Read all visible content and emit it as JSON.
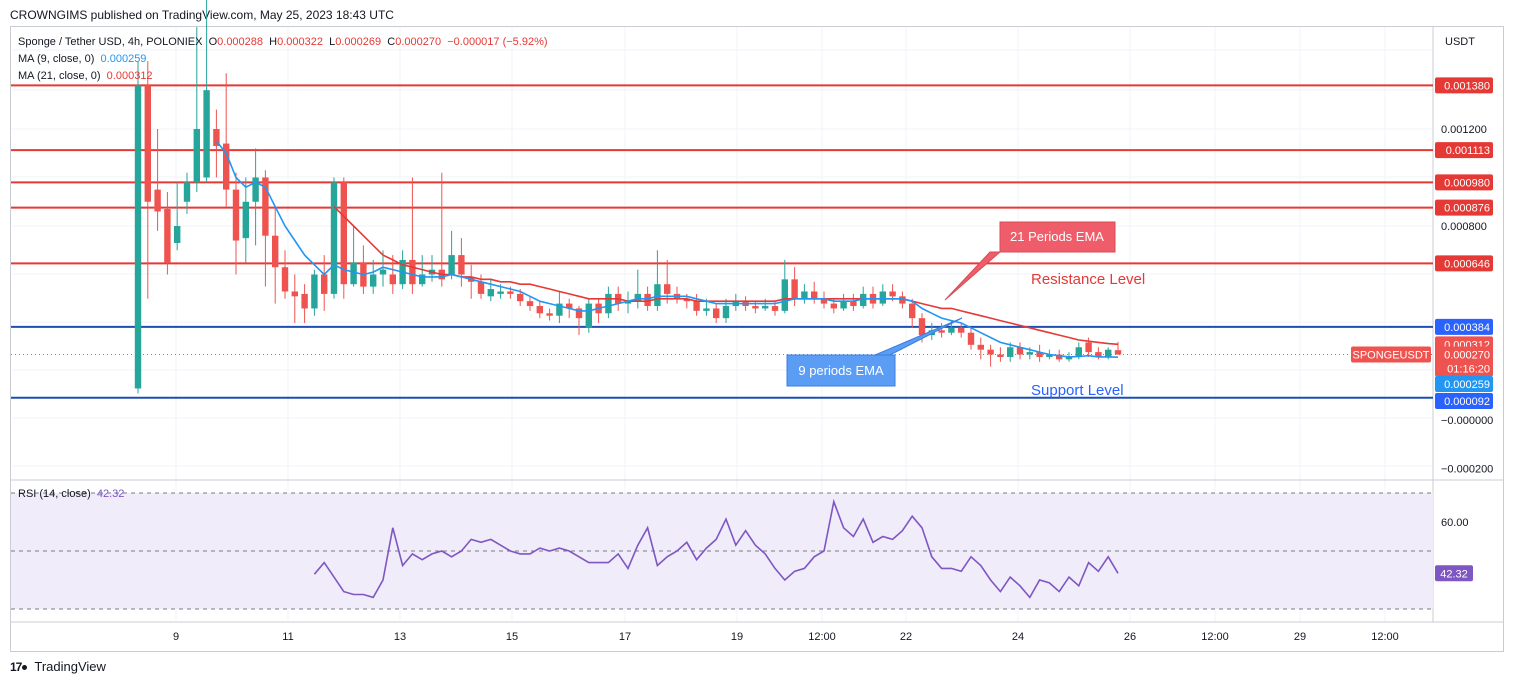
{
  "header": {
    "publisher_line": "CROWNGIMS published on TradingView.com, May 25, 2023 18:43 UTC"
  },
  "legend": {
    "symbol": "Sponge / Tether USD, 4h, POLONIEX",
    "o_label": "O",
    "o_value": "0.000288",
    "h_label": "H",
    "h_value": "0.000322",
    "l_label": "L",
    "l_value": "0.000269",
    "c_label": "C",
    "c_value": "0.000270",
    "change": "−0.000017 (−5.92%)",
    "ma9_label": "MA (9, close, 0)",
    "ma9_value": "0.000259",
    "ma21_label": "MA (21, close, 0)",
    "ma21_value": "0.000312"
  },
  "axis": {
    "currency": "USDT",
    "price_ticks": [
      "0.001200",
      "0.000800",
      "−0.000000",
      "−0.000200"
    ],
    "rsi_ticks": [
      "60.00"
    ],
    "x_ticks": [
      "9",
      "11",
      "13",
      "15",
      "17",
      "19",
      "12:00",
      "22",
      "24",
      "26",
      "12:00",
      "29",
      "12:00"
    ]
  },
  "levels": {
    "red": [
      {
        "value": 0.00138,
        "label": "0.001380"
      },
      {
        "value": 0.001113,
        "label": "0.001113"
      },
      {
        "value": 0.00098,
        "label": "0.000980"
      },
      {
        "value": 0.000876,
        "label": "0.000876"
      },
      {
        "value": 0.000646,
        "label": "0.000646"
      }
    ],
    "blue": [
      {
        "value": 0.000384,
        "label": "0.000384"
      },
      {
        "value": 9.2e-05,
        "label": "0.000092"
      }
    ]
  },
  "price_tags": {
    "ma21": "0.000312",
    "current": "0.000270",
    "countdown": "01:16:20",
    "ma9": "0.000259",
    "symbol_tag": "SPONGEUSDT"
  },
  "annotations": {
    "ema21": "21 Periods EMA",
    "ema9": "9 periods EMA",
    "resistance": "Resistance Level",
    "support": "Support Level"
  },
  "rsi": {
    "label": "RSI (14, close)",
    "value": "42.32"
  },
  "colors": {
    "up": "#26a69a",
    "down": "#ef5350",
    "ma9": "#2196f3",
    "ma21": "#e53935",
    "resistance_line": "#e53935",
    "support_line": "#1e4fb0",
    "rsi_line": "#7e57c2",
    "rsi_band": "#f0ecfa"
  },
  "footer": {
    "brand": "TradingView"
  },
  "chart_data": {
    "type": "candlestick",
    "title": "Sponge / Tether USD, 4h, POLONIEX",
    "ylabel": "USDT",
    "ylim": [
      -0.00025,
      0.00145
    ],
    "candles": [
      [
        0.00013,
        0.00138,
        0.00148,
        0.00011
      ],
      [
        0.00138,
        0.0009,
        0.00148,
        0.0005
      ],
      [
        0.00095,
        0.00086,
        0.0012,
        0.00078
      ],
      [
        0.00087,
        0.00065,
        0.00094,
        0.0006
      ],
      [
        0.00073,
        0.0008,
        0.00098,
        0.0007
      ],
      [
        0.0009,
        0.00098,
        0.00102,
        0.00085
      ],
      [
        0.00098,
        0.0012,
        0.00162,
        0.00094
      ],
      [
        0.001,
        0.00136,
        0.00178,
        0.00098
      ],
      [
        0.0012,
        0.00113,
        0.00128,
        0.001
      ],
      [
        0.00114,
        0.00095,
        0.00143,
        0.00088
      ],
      [
        0.00095,
        0.00074,
        0.00102,
        0.0006
      ],
      [
        0.00075,
        0.0009,
        0.001,
        0.00065
      ],
      [
        0.0009,
        0.001,
        0.00112,
        0.00072
      ],
      [
        0.001,
        0.00076,
        0.00103,
        0.00055
      ],
      [
        0.00076,
        0.00063,
        0.00088,
        0.00048
      ],
      [
        0.00063,
        0.00053,
        0.0007,
        0.0005
      ],
      [
        0.00053,
        0.00051,
        0.0006,
        0.0004
      ],
      [
        0.00052,
        0.00046,
        0.00056,
        0.0004
      ],
      [
        0.00046,
        0.0006,
        0.00062,
        0.00043
      ],
      [
        0.0006,
        0.00052,
        0.00068,
        0.00045
      ],
      [
        0.00052,
        0.00098,
        0.001,
        0.0005
      ],
      [
        0.00098,
        0.00056,
        0.001,
        0.0005
      ],
      [
        0.00056,
        0.00065,
        0.0008,
        0.00055
      ],
      [
        0.00065,
        0.00055,
        0.00072,
        0.00052
      ],
      [
        0.00055,
        0.0006,
        0.00066,
        0.00052
      ],
      [
        0.0006,
        0.00062,
        0.0007,
        0.00055
      ],
      [
        0.0006,
        0.00056,
        0.00068,
        0.00052
      ],
      [
        0.00056,
        0.00066,
        0.0007,
        0.00054
      ],
      [
        0.00066,
        0.00056,
        0.001,
        0.00052
      ],
      [
        0.00056,
        0.0006,
        0.00068,
        0.00055
      ],
      [
        0.0006,
        0.00062,
        0.00068,
        0.00057
      ],
      [
        0.00062,
        0.00058,
        0.00102,
        0.00055
      ],
      [
        0.0006,
        0.00068,
        0.00078,
        0.00058
      ],
      [
        0.00068,
        0.0006,
        0.00075,
        0.00055
      ],
      [
        0.00059,
        0.00057,
        0.00064,
        0.0005
      ],
      [
        0.00057,
        0.00052,
        0.0006,
        0.0005
      ],
      [
        0.00051,
        0.00054,
        0.00058,
        0.00049
      ],
      [
        0.00052,
        0.00053,
        0.00056,
        0.0005
      ],
      [
        0.00053,
        0.00052,
        0.00055,
        0.0005
      ],
      [
        0.00052,
        0.00049,
        0.00054,
        0.00047
      ],
      [
        0.00049,
        0.00047,
        0.00051,
        0.00045
      ],
      [
        0.00047,
        0.00044,
        0.00049,
        0.00042
      ],
      [
        0.00044,
        0.00043,
        0.00046,
        0.00041
      ],
      [
        0.00043,
        0.00048,
        0.00053,
        0.0004
      ],
      [
        0.00048,
        0.00046,
        0.0005,
        0.00042
      ],
      [
        0.00046,
        0.00042,
        0.00047,
        0.00035
      ],
      [
        0.00038,
        0.00048,
        0.0005,
        0.00036
      ],
      [
        0.00048,
        0.00044,
        0.0005,
        0.0004
      ],
      [
        0.00044,
        0.00052,
        0.00055,
        0.00042
      ],
      [
        0.00052,
        0.00048,
        0.00055,
        0.00045
      ],
      [
        0.00048,
        0.00049,
        0.00053,
        0.00044
      ],
      [
        0.00049,
        0.00052,
        0.00062,
        0.00046
      ],
      [
        0.00052,
        0.00047,
        0.00055,
        0.00045
      ],
      [
        0.00047,
        0.00056,
        0.0007,
        0.00045
      ],
      [
        0.00056,
        0.00052,
        0.00066,
        0.00048
      ],
      [
        0.00052,
        0.0005,
        0.00055,
        0.00048
      ],
      [
        0.0005,
        0.00049,
        0.00052,
        0.00046
      ],
      [
        0.00049,
        0.00045,
        0.00052,
        0.00043
      ],
      [
        0.00045,
        0.00046,
        0.0005,
        0.00043
      ],
      [
        0.00046,
        0.00042,
        0.00048,
        0.0004
      ],
      [
        0.00042,
        0.00047,
        0.0005,
        0.0004
      ],
      [
        0.00047,
        0.00049,
        0.00052,
        0.00045
      ],
      [
        0.00049,
        0.00047,
        0.00051,
        0.00045
      ],
      [
        0.00047,
        0.00046,
        0.00049,
        0.00044
      ],
      [
        0.00046,
        0.00047,
        0.0005,
        0.00045
      ],
      [
        0.00047,
        0.00045,
        0.00049,
        0.00043
      ],
      [
        0.00045,
        0.00058,
        0.00066,
        0.00044
      ],
      [
        0.00058,
        0.0005,
        0.00063,
        0.00047
      ],
      [
        0.0005,
        0.00053,
        0.00056,
        0.00048
      ],
      [
        0.00053,
        0.0005,
        0.00057,
        0.00048
      ],
      [
        0.0005,
        0.00048,
        0.00053,
        0.00046
      ],
      [
        0.00048,
        0.00046,
        0.0005,
        0.00044
      ],
      [
        0.00046,
        0.00049,
        0.00052,
        0.00045
      ],
      [
        0.00049,
        0.00047,
        0.00052,
        0.00045
      ],
      [
        0.00047,
        0.00052,
        0.00055,
        0.00046
      ],
      [
        0.00052,
        0.00048,
        0.00055,
        0.00046
      ],
      [
        0.00048,
        0.00053,
        0.00056,
        0.00047
      ],
      [
        0.00053,
        0.00051,
        0.00056,
        0.00049
      ],
      [
        0.00051,
        0.00048,
        0.00053,
        0.00046
      ],
      [
        0.00048,
        0.00042,
        0.0005,
        0.00038
      ],
      [
        0.00042,
        0.00035,
        0.00044,
        0.00032
      ],
      [
        0.00035,
        0.00037,
        0.0004,
        0.00033
      ],
      [
        0.00037,
        0.00036,
        0.0004,
        0.00034
      ],
      [
        0.00036,
        0.00038,
        0.00041,
        0.00035
      ],
      [
        0.00038,
        0.00036,
        0.0004,
        0.00034
      ],
      [
        0.00036,
        0.00031,
        0.00038,
        0.00029
      ],
      [
        0.00031,
        0.00029,
        0.00034,
        0.00025
      ],
      [
        0.00029,
        0.00027,
        0.00031,
        0.00022
      ],
      [
        0.00027,
        0.00026,
        0.0003,
        0.00024
      ],
      [
        0.00026,
        0.0003,
        0.00032,
        0.00024
      ],
      [
        0.0003,
        0.00027,
        0.00032,
        0.00025
      ],
      [
        0.00027,
        0.00028,
        0.0003,
        0.00025
      ],
      [
        0.00028,
        0.00026,
        0.00031,
        0.00024
      ],
      [
        0.00026,
        0.00027,
        0.00029,
        0.00025
      ],
      [
        0.00027,
        0.00025,
        0.00029,
        0.00024
      ],
      [
        0.00025,
        0.00026,
        0.00028,
        0.00024
      ],
      [
        0.00026,
        0.0003,
        0.00032,
        0.00025
      ],
      [
        0.00032,
        0.00028,
        0.00034,
        0.00026
      ],
      [
        0.00028,
        0.00026,
        0.0003,
        0.00025
      ],
      [
        0.00026,
        0.00029,
        0.0003,
        0.00025
      ],
      [
        0.000288,
        0.00027,
        0.000322,
        0.000269
      ]
    ],
    "ma9": [
      null,
      null,
      null,
      null,
      null,
      null,
      null,
      null,
      0.00115,
      0.0011,
      0.001,
      0.00096,
      0.00098,
      0.00096,
      0.00088,
      0.0008,
      0.00074,
      0.00068,
      0.00064,
      0.0006,
      0.00064,
      0.00062,
      0.00061,
      0.0006,
      0.00061,
      0.00063,
      0.00062,
      0.00061,
      0.0006,
      0.00059,
      0.00059,
      0.00059,
      0.0006,
      0.00059,
      0.00058,
      0.00057,
      0.00056,
      0.00055,
      0.00054,
      0.00053,
      0.00051,
      0.00049,
      0.00048,
      0.00047,
      0.00046,
      0.00045,
      0.00045,
      0.00046,
      0.00047,
      0.00048,
      0.00049,
      0.0005,
      0.0005,
      0.00051,
      0.00051,
      0.00051,
      0.00051,
      0.0005,
      0.00049,
      0.00048,
      0.00048,
      0.00048,
      0.00048,
      0.00048,
      0.00048,
      0.00048,
      0.00049,
      0.0005,
      0.0005,
      0.0005,
      0.0005,
      0.00049,
      0.00049,
      0.00049,
      0.0005,
      0.0005,
      0.0005,
      0.0005,
      0.0005,
      0.00049,
      0.00046,
      0.00044,
      0.00042,
      0.00041,
      0.0004,
      0.00038,
      0.00036,
      0.00034,
      0.00032,
      0.00031,
      0.0003,
      0.00029,
      0.00028,
      0.00027,
      0.000265,
      0.00026,
      0.000262,
      0.000265,
      0.00026,
      0.00026,
      0.000259
    ],
    "ma21": [
      null,
      null,
      null,
      null,
      null,
      null,
      null,
      null,
      null,
      null,
      null,
      null,
      null,
      null,
      null,
      null,
      null,
      null,
      null,
      null,
      0.00088,
      0.00084,
      0.0008,
      0.00076,
      0.00072,
      0.00068,
      0.00066,
      0.00064,
      0.00063,
      0.00062,
      0.00061,
      0.0006,
      0.0006,
      0.00059,
      0.00059,
      0.00058,
      0.00058,
      0.00057,
      0.00057,
      0.00056,
      0.00056,
      0.00055,
      0.00054,
      0.00053,
      0.00052,
      0.00051,
      0.0005,
      0.0005,
      0.0005,
      0.0005,
      0.00049,
      0.00049,
      0.00049,
      0.0005,
      0.0005,
      0.0005,
      0.0005,
      0.00049,
      0.00049,
      0.00049,
      0.00049,
      0.00049,
      0.00049,
      0.00049,
      0.00049,
      0.00049,
      0.0005,
      0.0005,
      0.0005,
      0.0005,
      0.0005,
      0.0005,
      0.0005,
      0.0005,
      0.0005,
      0.0005,
      0.0005,
      0.0005,
      0.0005,
      0.00049,
      0.00048,
      0.00047,
      0.00046,
      0.00046,
      0.00045,
      0.00044,
      0.00043,
      0.00042,
      0.00041,
      0.0004,
      0.00039,
      0.00038,
      0.00037,
      0.00036,
      0.00035,
      0.00034,
      0.00033,
      0.000325,
      0.00032,
      0.000315,
      0.000312
    ],
    "rsi": [
      null,
      null,
      null,
      null,
      null,
      null,
      null,
      null,
      null,
      null,
      null,
      null,
      null,
      null,
      null,
      null,
      null,
      null,
      42,
      46,
      41,
      36,
      35,
      35,
      34,
      40,
      58,
      45,
      49,
      47,
      49,
      50,
      48,
      50,
      54,
      53,
      54,
      52,
      50,
      49,
      49,
      51,
      50,
      51,
      50,
      48,
      46,
      46,
      46,
      49,
      44,
      52,
      58,
      45,
      48,
      50,
      53,
      47,
      51,
      54,
      61,
      52,
      57,
      52,
      49,
      44,
      40,
      43,
      44,
      48,
      50,
      67,
      58,
      55,
      61,
      53,
      55,
      54,
      57,
      62,
      58,
      48,
      44,
      44,
      43,
      48,
      45,
      40,
      36,
      41,
      38,
      34,
      40,
      39,
      36,
      41,
      38,
      46,
      43,
      48,
      42.32
    ],
    "rsi_bands": [
      70,
      50,
      30
    ]
  }
}
